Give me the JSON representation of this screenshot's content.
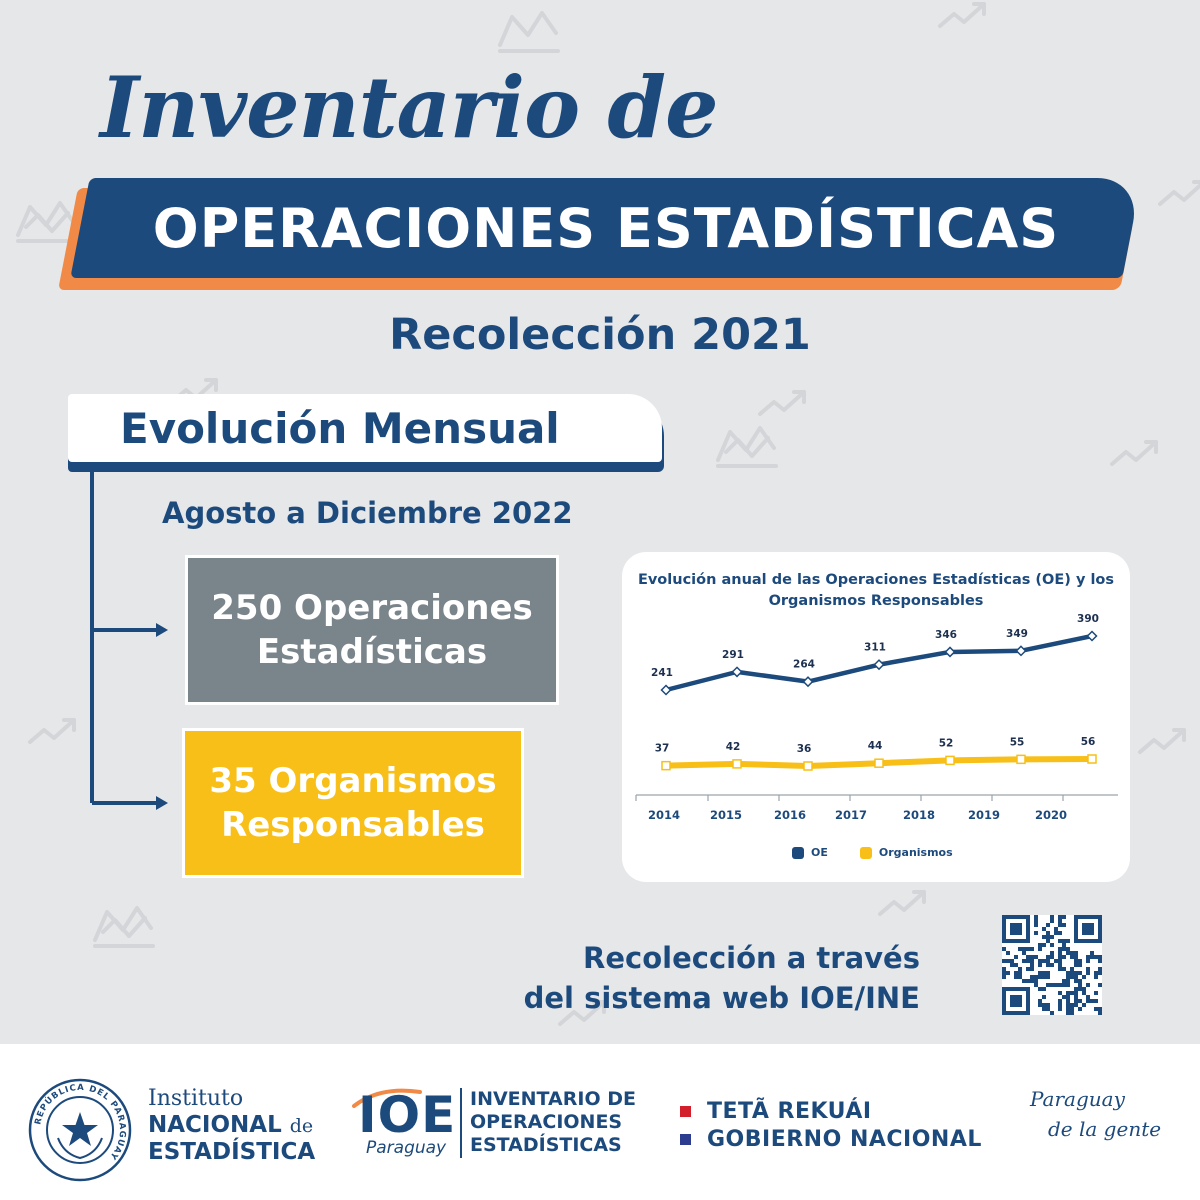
{
  "header": {
    "script_title": "Inventario de",
    "banner_title": "OPERACIONES ESTADÍSTICAS",
    "subtitle": "Recolección 2021"
  },
  "section": {
    "tab_label": "Evolución Mensual",
    "range_label": "Agosto a Diciembre 2022"
  },
  "stats": {
    "operations_line1": "250 Operaciones",
    "operations_line2": "Estadísticas",
    "organisms_line1": "35 Organismos",
    "organisms_line2": "Responsables"
  },
  "chart_data": {
    "type": "line",
    "title_line1": "Evolución anual de las Operaciones Estadísticas (OE) y los",
    "title_line2": "Organismos Responsables",
    "categories": [
      "2014",
      "2015",
      "2016",
      "2017",
      "2018",
      "2019",
      "2020"
    ],
    "series": [
      {
        "name": "OE",
        "values": [
          241,
          291,
          264,
          311,
          346,
          349,
          390
        ],
        "color": "#1d4a7c"
      },
      {
        "name": "Organismos",
        "values": [
          37,
          42,
          36,
          44,
          52,
          55,
          56
        ],
        "color": "#f7bf17"
      }
    ],
    "grid": false,
    "legend_position": "bottom"
  },
  "footer": {
    "collection_line1": "Recolección a través",
    "collection_line2": "del sistema web IOE/INE",
    "ine_line1": "Instituto",
    "ine_line2": "NACIONAL",
    "ine_de": "de",
    "ine_line3": "ESTADÍSTICA",
    "seal_text": "REPÚBLICA DEL PARAGUAY",
    "ioe_abbr": "IOE",
    "ioe_country": "Paraguay",
    "ioe_name_line1": "INVENTARIO DE",
    "ioe_name_line2": "OPERACIONES",
    "ioe_name_line3": "ESTADÍSTICAS",
    "gov_line1": "TETÃ REKUÁI",
    "gov_line2": "GOBIERNO NACIONAL",
    "slogan_line1": "Paraguay",
    "slogan_line2": "de la gente"
  },
  "colors": {
    "brand_blue": "#1d4a7c",
    "accent_orange": "#f08a46",
    "gray_box": "#7a848b",
    "yellow_box": "#f7bf17",
    "gov_red": "#d21f2b",
    "gov_blue": "#2c3d8f"
  },
  "icons": [
    "qr-code-icon",
    "chart-doodle-icon",
    "trend-arrow-icon",
    "national-seal-icon"
  ]
}
